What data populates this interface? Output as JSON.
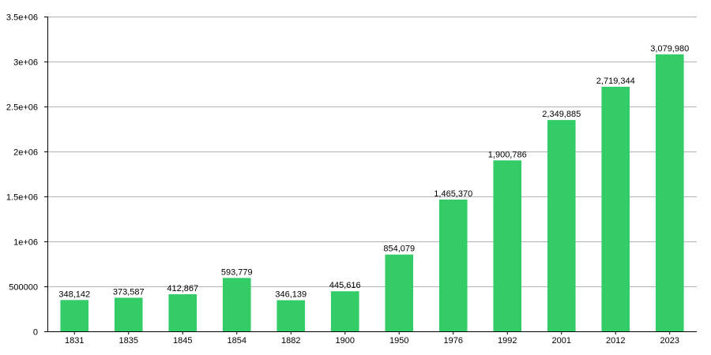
{
  "chart_data": {
    "type": "bar",
    "title": "",
    "xlabel": "",
    "ylabel": "",
    "categories": [
      "1831",
      "1835",
      "1845",
      "1854",
      "1882",
      "1900",
      "1950",
      "1976",
      "1992",
      "2001",
      "2012",
      "2023"
    ],
    "values": [
      348142,
      373587,
      412867,
      593779,
      346139,
      445616,
      854079,
      1465370,
      1900786,
      2349885,
      2719344,
      3079980
    ],
    "data_labels": [
      "348,142",
      "373,587",
      "412,867",
      "593,779",
      "346,139",
      "445,616",
      "854,079",
      "1,465,370",
      "1,900,786",
      "2,349,885",
      "2,719,344",
      "3,079,980"
    ],
    "ylim": [
      0,
      3500000
    ],
    "yticks": [
      0,
      500000,
      1000000,
      1500000,
      2000000,
      2500000,
      3000000,
      3500000
    ],
    "ytick_labels": [
      "0",
      "500000",
      "1e+06",
      "1.5e+06",
      "2e+06",
      "2.5e+06",
      "3e+06",
      "3.5e+06"
    ],
    "grid": true,
    "legend": "none",
    "colors": {
      "bar": "#33cc66",
      "grid": "#b3b3b3",
      "axis": "#000000"
    }
  }
}
